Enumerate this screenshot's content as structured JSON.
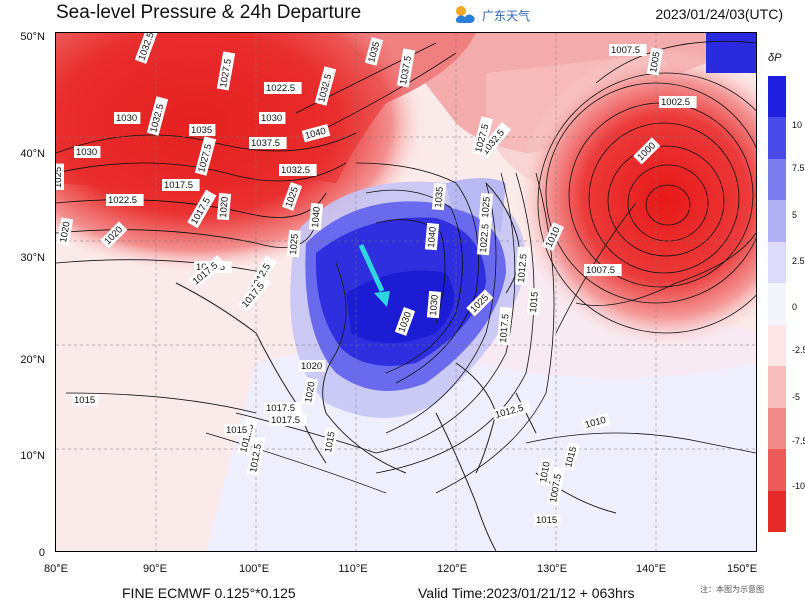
{
  "header": {
    "title": "Sea-level Pressure & 24h Departure",
    "brand": "广东天气",
    "timestamp": "2023/01/24/03(UTC)"
  },
  "map": {
    "lon_labels": [
      "80°E",
      "90°E",
      "100°E",
      "110°E",
      "120°E",
      "130°E",
      "140°E",
      "150°E"
    ],
    "lat_labels": [
      "50°N",
      "40°N",
      "30°N",
      "20°N",
      "10°N",
      "0"
    ],
    "lon_range": [
      80,
      150
    ],
    "lat_range": [
      0,
      50
    ],
    "isobar_labels": [
      "1032.5",
      "1027.5",
      "1022.5",
      "1032.5",
      "1035",
      "1037.5",
      "1030",
      "1030",
      "1032.5",
      "1035",
      "1037.5",
      "1040",
      "1030",
      "1025",
      "1017.5",
      "1027.5",
      "1032.5",
      "1022.5",
      "1025",
      "1020",
      "1017.5",
      "1020",
      "1020",
      "1017.5",
      "1040",
      "1025",
      "1012.5",
      "1017.5",
      "1017.5",
      "1040",
      "1035",
      "1032.5",
      "1025",
      "1027.5",
      "1022.5",
      "1030",
      "1020",
      "1030",
      "1025",
      "1017.5",
      "1015",
      "1012.5",
      "1010",
      "1007.5",
      "1000",
      "1002.5",
      "1005",
      "1007.5",
      "1010",
      "1012.5",
      "1015",
      "1020",
      "1015",
      "1015",
      "1017.5",
      "1012.5",
      "1010",
      "1007.5",
      "1015",
      "1017.5",
      "1012.5",
      "1015"
    ]
  },
  "colorbar": {
    "title": "δP",
    "labels": [
      "10",
      "7.5",
      "5",
      "2.5",
      "0",
      "-2.5",
      "-5",
      "-7.5",
      "-10"
    ],
    "colors": [
      "#1f1fe0",
      "#4a4ae8",
      "#7d7df0",
      "#b0b0f5",
      "#dcdcfa",
      "#f4f4fd",
      "#fbe5e5",
      "#f7bcbc",
      "#f28a8a",
      "#ec5a5a",
      "#e62a2a"
    ]
  },
  "footer": {
    "model": "FINE ECMWF 0.125°*0.125",
    "valid": "Valid Time:2023/01/21/12 + 063hrs",
    "note": "注：本图为示意图"
  }
}
